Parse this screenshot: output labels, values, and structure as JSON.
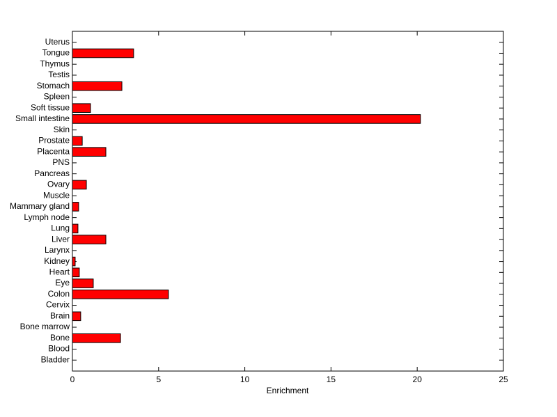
{
  "chart_data": {
    "type": "barh",
    "xlabel": "Enrichment",
    "categories": [
      "Bladder",
      "Blood",
      "Bone",
      "Bone marrow",
      "Brain",
      "Cervix",
      "Colon",
      "Eye",
      "Heart",
      "Kidney",
      "Larynx",
      "Liver",
      "Lung",
      "Lymph node",
      "Mammary gland",
      "Muscle",
      "Ovary",
      "Pancreas",
      "PNS",
      "Placenta",
      "Prostate",
      "Skin",
      "Small intestine",
      "Soft tissue",
      "Spleen",
      "Stomach",
      "Testis",
      "Thymus",
      "Tongue",
      "Uterus"
    ],
    "values": [
      0,
      0,
      2.79,
      0,
      0.48,
      0,
      5.57,
      1.21,
      0.4,
      0.16,
      0,
      1.94,
      0.32,
      0,
      0.36,
      0,
      0.81,
      0,
      0,
      1.94,
      0.57,
      0,
      20.19,
      1.05,
      0,
      2.87,
      0,
      0,
      3.55,
      0
    ],
    "color": "#ff0000",
    "xlim": [
      0,
      25
    ],
    "xticks": [
      0,
      5,
      10,
      15,
      20,
      25
    ]
  }
}
